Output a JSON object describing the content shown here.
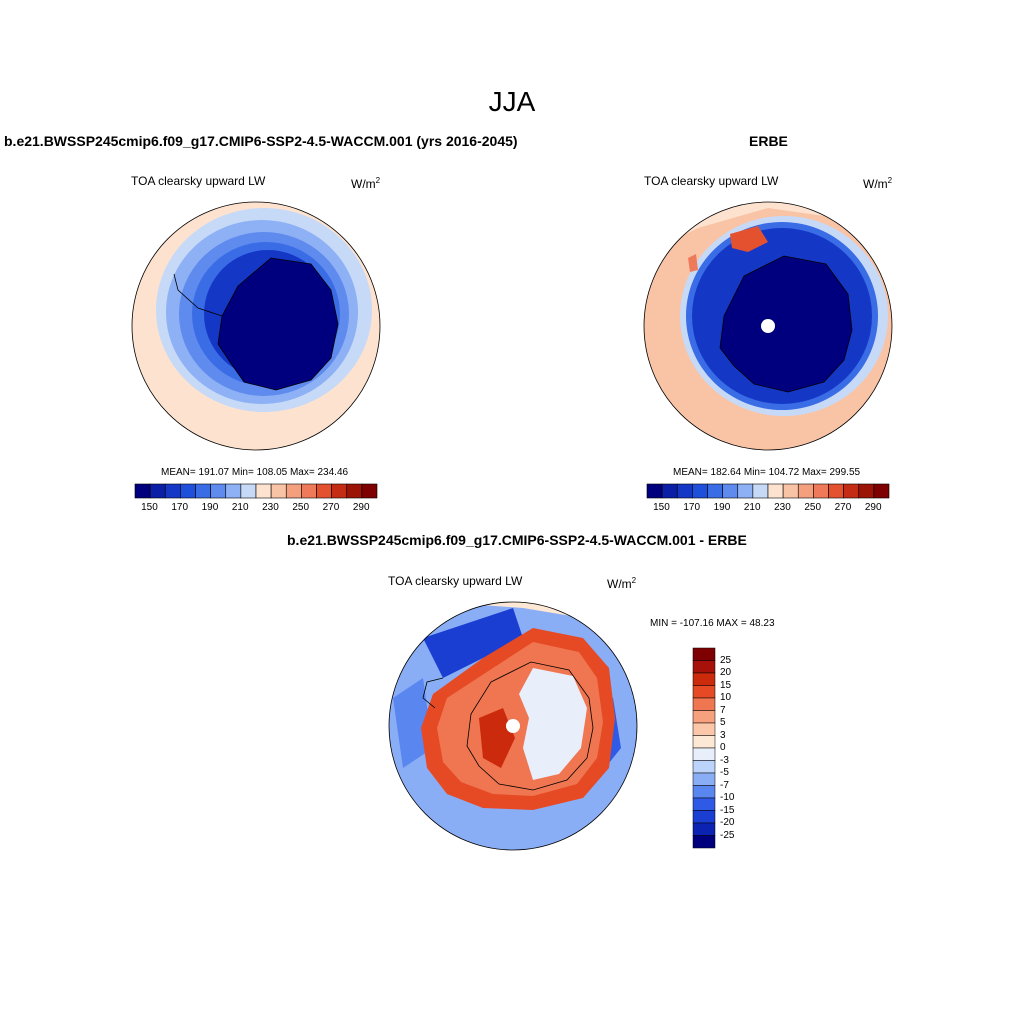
{
  "figure": {
    "title": "JJA"
  },
  "panels": {
    "model": {
      "title": "b.e21.BWSSP245cmip6.f09_g17.CMIP6-SSP2-4.5-WACCM.001 (yrs 2016-2045)",
      "variable": "TOA clearsky upward LW",
      "units_base": "W/m",
      "units_exp": "2",
      "stats": "MEAN= 191.07  Min= 108.05  Max= 234.46"
    },
    "obs": {
      "title": "ERBE",
      "variable": "TOA clearsky upward LW",
      "units_base": "W/m",
      "units_exp": "2",
      "stats": "MEAN= 182.64  Min= 104.72  Max= 299.55"
    },
    "diff": {
      "title": "b.e21.BWSSP245cmip6.f09_g17.CMIP6-SSP2-4.5-WACCM.001 - ERBE",
      "variable": "TOA clearsky upward LW",
      "units_base": "W/m",
      "units_exp": "2",
      "stats": "MIN = -107.16 MAX =  48.23"
    }
  },
  "colorbars": {
    "abs": {
      "colors": [
        "#00007f",
        "#0a1fa6",
        "#1437c6",
        "#1e50dc",
        "#3a6ce6",
        "#5f8aee",
        "#8eb0f4",
        "#c6daf8",
        "#fde3cf",
        "#f9c3a6",
        "#f4a07f",
        "#ef7a59",
        "#e4512f",
        "#c42d14",
        "#9c1406",
        "#7f0000"
      ],
      "tick_labels": [
        "150",
        "170",
        "190",
        "210",
        "230",
        "250",
        "270",
        "290"
      ]
    },
    "diff": {
      "colors": [
        "#00007f",
        "#0b23b0",
        "#1a3ed2",
        "#2e5ae6",
        "#5a86f0",
        "#8aaef6",
        "#bcd3fa",
        "#e9eefb",
        "#fde7d5",
        "#fbc7a8",
        "#f6a07e",
        "#ef7650",
        "#e64a24",
        "#cc2a0c",
        "#a6120a",
        "#7f0000"
      ],
      "tick_labels": [
        "25",
        "20",
        "15",
        "10",
        "7",
        "5",
        "3",
        "0",
        "-3",
        "-5",
        "-7",
        "-10",
        "-15",
        "-20",
        "-25"
      ]
    }
  }
}
